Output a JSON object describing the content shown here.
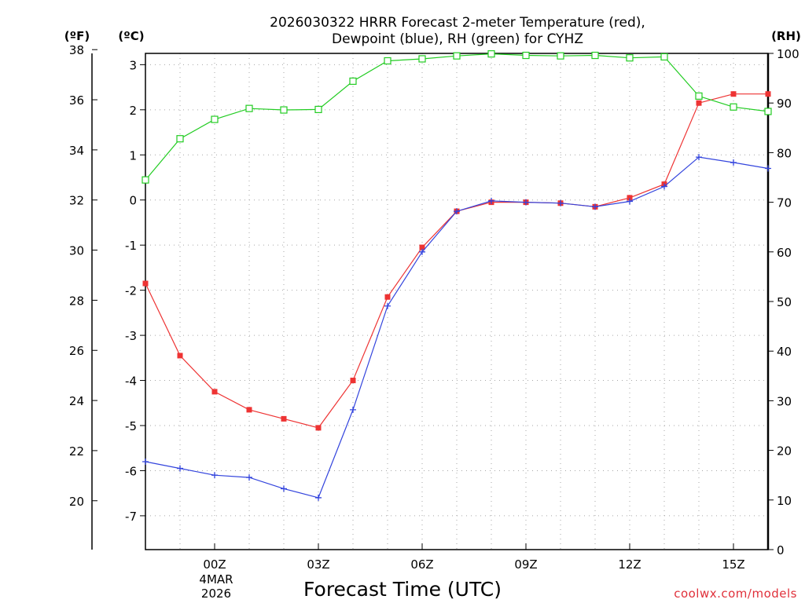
{
  "chart_data": {
    "type": "line",
    "title_line1": "2026030322 HRRR Forecast 2-meter Temperature (red),",
    "title_line2": "Dewpoint (blue), RH (green) for CYHZ",
    "xlabel": "Forecast Time (UTC)",
    "date_label_line1": "4MAR",
    "date_label_line2": "2026",
    "credit": "coolwx.com/models",
    "units": {
      "fahrenheit": "(ºF)",
      "celsius": "(ºC)",
      "rh": "(RH)"
    },
    "x": [
      -2,
      -1,
      0,
      1,
      2,
      3,
      4,
      5,
      6,
      7,
      8,
      9,
      10,
      11,
      12,
      13,
      14,
      15,
      16
    ],
    "x_tick_values": [
      0,
      3,
      6,
      9,
      12,
      15
    ],
    "x_tick_labels": [
      "00Z",
      "03Z",
      "06Z",
      "09Z",
      "12Z",
      "15Z"
    ],
    "xlim": [
      -2,
      16
    ],
    "y_left_celsius": {
      "ylim": [
        -7.75,
        3.25
      ],
      "ticks": [
        -7,
        -6,
        -5,
        -4,
        -3,
        -2,
        -1,
        0,
        1,
        2,
        3
      ]
    },
    "y_left_fahrenheit": {
      "ylim": [
        18.05,
        37.85
      ],
      "ticks": [
        20,
        22,
        24,
        26,
        28,
        30,
        32,
        34,
        36,
        38
      ]
    },
    "y_right_rh": {
      "ylim": [
        0,
        100
      ],
      "ticks": [
        0,
        10,
        20,
        30,
        40,
        50,
        60,
        70,
        80,
        90,
        100
      ]
    },
    "series": [
      {
        "name": "Temperature",
        "axis": "celsius",
        "color": "#ee3333",
        "marker": "filled-square",
        "values": [
          -1.85,
          -3.45,
          -4.25,
          -4.65,
          -4.85,
          -5.05,
          -4.0,
          -2.15,
          -1.05,
          -0.25,
          -0.05,
          -0.05,
          -0.07,
          -0.15,
          0.05,
          0.35,
          2.15,
          2.35,
          2.35
        ]
      },
      {
        "name": "Dewpoint",
        "axis": "celsius",
        "color": "#3344dd",
        "marker": "plus",
        "values": [
          -5.8,
          -5.95,
          -6.1,
          -6.15,
          -6.4,
          -6.6,
          -4.65,
          -2.35,
          -1.15,
          -0.25,
          -0.02,
          -0.05,
          -0.07,
          -0.15,
          -0.03,
          0.3,
          0.95,
          0.83,
          0.7
        ]
      },
      {
        "name": "RH",
        "axis": "rh",
        "color": "#22cc22",
        "marker": "open-square",
        "values": [
          74.5,
          82.8,
          86.7,
          88.9,
          88.6,
          88.7,
          94.4,
          98.5,
          98.9,
          99.5,
          99.9,
          99.6,
          99.5,
          99.6,
          99.1,
          99.3,
          91.4,
          89.2,
          88.3
        ]
      }
    ]
  }
}
